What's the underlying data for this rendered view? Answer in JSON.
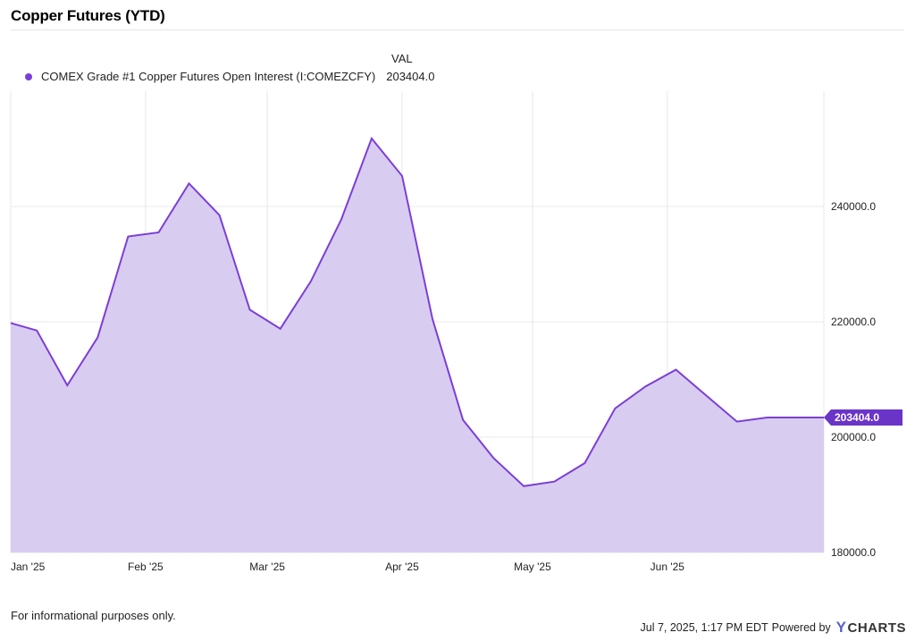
{
  "title": "Copper Futures (YTD)",
  "legend": {
    "header": "VAL",
    "series_label": "COMEX Grade #1 Copper Futures Open Interest (I:COMEZCFY)",
    "value": "203404.0"
  },
  "colors": {
    "line": "#7b3fd6",
    "fill": "#d9ccf1",
    "grid": "#e8e8e8",
    "badge": "#6a34c9"
  },
  "footer": {
    "note": "For informational purposes only.",
    "timestamp": "Jul 7, 2025, 1:17 PM EDT",
    "powered_by": "Powered by",
    "brand": "CHARTS"
  },
  "chart_data": {
    "type": "area",
    "title": "Copper Futures (YTD)",
    "x_tick_labels": [
      "Jan '25",
      "Feb '25",
      "Mar '25",
      "Apr '25",
      "May '25",
      "Jun '25"
    ],
    "x_ticks": [
      "2025-01-01",
      "2025-02-01",
      "2025-03-01",
      "2025-04-01",
      "2025-05-01",
      "2025-06-01"
    ],
    "y_tick_labels": [
      "180000.0",
      "200000.0",
      "220000.0",
      "240000.0"
    ],
    "y_ticks": [
      180000,
      200000,
      220000,
      240000
    ],
    "xlim": [
      "2025-01-01",
      "2025-07-07"
    ],
    "ylim": [
      180000,
      260000
    ],
    "grid": true,
    "last_value_label": "203404.0",
    "series": [
      {
        "name": "COMEX Grade #1 Copper Futures Open Interest (I:COMEZCFY)",
        "points": [
          [
            "2025-01-01",
            219800
          ],
          [
            "2025-01-07",
            218500
          ],
          [
            "2025-01-14",
            209000
          ],
          [
            "2025-01-21",
            217300
          ],
          [
            "2025-01-28",
            234800
          ],
          [
            "2025-02-04",
            235500
          ],
          [
            "2025-02-11",
            244000
          ],
          [
            "2025-02-18",
            238500
          ],
          [
            "2025-02-25",
            222100
          ],
          [
            "2025-03-04",
            218800
          ],
          [
            "2025-03-11",
            227000
          ],
          [
            "2025-03-18",
            237700
          ],
          [
            "2025-03-25",
            251800
          ],
          [
            "2025-04-01",
            245300
          ],
          [
            "2025-04-08",
            220500
          ],
          [
            "2025-04-15",
            203000
          ],
          [
            "2025-04-22",
            196400
          ],
          [
            "2025-04-29",
            191500
          ],
          [
            "2025-05-06",
            192300
          ],
          [
            "2025-05-13",
            195500
          ],
          [
            "2025-05-20",
            205000
          ],
          [
            "2025-05-27",
            208800
          ],
          [
            "2025-06-03",
            211700
          ],
          [
            "2025-06-10",
            207200
          ],
          [
            "2025-06-17",
            202700
          ],
          [
            "2025-06-24",
            203404
          ]
        ]
      }
    ]
  }
}
